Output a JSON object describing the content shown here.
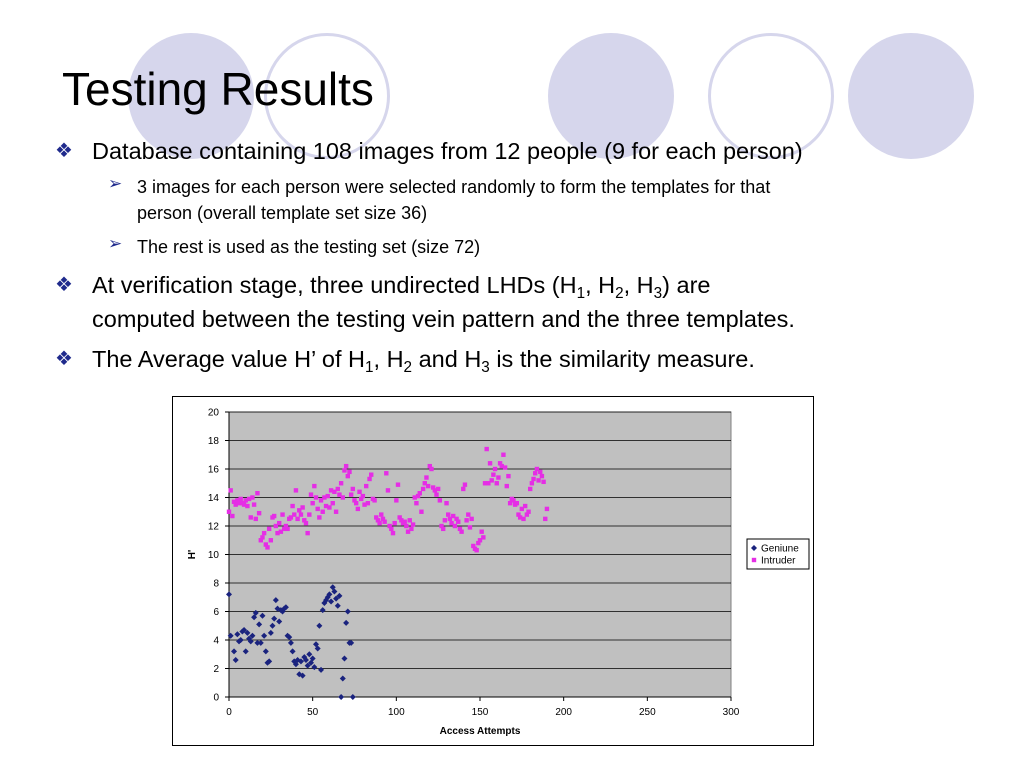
{
  "slide": {
    "title": "Testing Results",
    "bullets": [
      {
        "level": 1,
        "text": "Database containing 108 images from 12 people (9 for each person)"
      },
      {
        "level": 2,
        "text": "3 images for each person were selected randomly to form the templates for that"
      },
      {
        "level": 2,
        "text": "person (overall template set size 36)"
      },
      {
        "level": 2,
        "text": "The rest is used as the testing set (size 72)"
      },
      {
        "level": 1,
        "text": "At verification stage, three undirected LHDs (H",
        "sub1": "1",
        "mid1": ", H",
        "sub2": "2",
        "mid2": ", H",
        "sub3": "3",
        "tail": ") are"
      },
      {
        "level": 1,
        "text": "computed between the testing vein pattern and the three templates."
      },
      {
        "level": 1,
        "text": "The Average value H’ of H",
        "sub1": "1",
        "mid1": ", H",
        "sub2": "2",
        "mid2": " and H",
        "sub3": "3",
        "tail": " is the similarity measure."
      }
    ],
    "colors": {
      "accent": "#1f2a8c",
      "decor": "#d6d6ec"
    }
  },
  "chart_data": {
    "type": "scatter",
    "xlabel": "Access Attempts",
    "ylabel": "H'",
    "xlim": [
      0,
      300
    ],
    "ylim": [
      0,
      20
    ],
    "xticks": [
      0,
      50,
      100,
      150,
      200,
      250,
      300
    ],
    "yticks": [
      0,
      2,
      4,
      6,
      8,
      10,
      12,
      14,
      16,
      18,
      20
    ],
    "grid": true,
    "plot_background": "#c0c0c0",
    "legend_position": "right",
    "series": [
      {
        "name": "Geniune",
        "color": "#1a237e",
        "marker": "diamond",
        "points": [
          [
            0,
            7.2
          ],
          [
            1,
            4.3
          ],
          [
            3,
            3.2
          ],
          [
            4,
            2.6
          ],
          [
            5,
            4.4
          ],
          [
            6,
            3.9
          ],
          [
            7,
            4.0
          ],
          [
            8,
            4.6
          ],
          [
            9,
            4.7
          ],
          [
            10,
            3.2
          ],
          [
            11,
            4.5
          ],
          [
            12,
            4.1
          ],
          [
            13,
            3.9
          ],
          [
            14,
            4.3
          ],
          [
            15,
            5.6
          ],
          [
            16,
            5.9
          ],
          [
            17,
            3.8
          ],
          [
            18,
            5.1
          ],
          [
            19,
            3.8
          ],
          [
            20,
            5.7
          ],
          [
            21,
            4.3
          ],
          [
            22,
            3.2
          ],
          [
            23,
            2.4
          ],
          [
            24,
            2.5
          ],
          [
            25,
            4.5
          ],
          [
            26,
            5.0
          ],
          [
            27,
            5.5
          ],
          [
            28,
            6.8
          ],
          [
            29,
            6.2
          ],
          [
            30,
            5.3
          ],
          [
            31,
            6.1
          ],
          [
            32,
            6.0
          ],
          [
            33,
            6.2
          ],
          [
            34,
            6.3
          ],
          [
            35,
            4.3
          ],
          [
            36,
            4.2
          ],
          [
            37,
            3.8
          ],
          [
            38,
            3.2
          ],
          [
            39,
            2.5
          ],
          [
            40,
            2.3
          ],
          [
            41,
            2.6
          ],
          [
            42,
            1.6
          ],
          [
            43,
            2.5
          ],
          [
            44,
            1.5
          ],
          [
            45,
            2.8
          ],
          [
            46,
            2.6
          ],
          [
            47,
            2.2
          ],
          [
            48,
            3.0
          ],
          [
            49,
            2.4
          ],
          [
            50,
            2.7
          ],
          [
            51,
            2.1
          ],
          [
            52,
            3.7
          ],
          [
            53,
            3.4
          ],
          [
            54,
            5.0
          ],
          [
            55,
            1.9
          ],
          [
            56,
            6.1
          ],
          [
            57,
            6.6
          ],
          [
            58,
            6.8
          ],
          [
            59,
            7.0
          ],
          [
            60,
            7.2
          ],
          [
            61,
            6.7
          ],
          [
            62,
            7.7
          ],
          [
            63,
            7.4
          ],
          [
            64,
            6.9
          ],
          [
            65,
            6.4
          ],
          [
            66,
            7.1
          ],
          [
            67,
            0.0
          ],
          [
            68,
            1.3
          ],
          [
            69,
            2.7
          ],
          [
            70,
            5.2
          ],
          [
            71,
            6.0
          ],
          [
            72,
            3.8
          ],
          [
            73,
            3.8
          ],
          [
            74,
            0.0
          ]
        ]
      },
      {
        "name": "Intruder",
        "color": "#e52ee5",
        "marker": "square",
        "points": [
          [
            0,
            13.0
          ],
          [
            1,
            14.5
          ],
          [
            2,
            12.7
          ],
          [
            3,
            13.7
          ],
          [
            4,
            13.5
          ],
          [
            5,
            13.8
          ],
          [
            6,
            13.6
          ],
          [
            7,
            13.9
          ],
          [
            8,
            13.6
          ],
          [
            9,
            13.5
          ],
          [
            10,
            13.8
          ],
          [
            11,
            13.4
          ],
          [
            12,
            13.9
          ],
          [
            13,
            12.6
          ],
          [
            14,
            14.0
          ],
          [
            15,
            13.5
          ],
          [
            16,
            12.5
          ],
          [
            17,
            14.3
          ],
          [
            18,
            12.9
          ],
          [
            19,
            11.0
          ],
          [
            20,
            11.2
          ],
          [
            21,
            11.5
          ],
          [
            22,
            10.7
          ],
          [
            23,
            10.5
          ],
          [
            24,
            11.8
          ],
          [
            25,
            11.0
          ],
          [
            26,
            12.6
          ],
          [
            27,
            12.7
          ],
          [
            28,
            12.0
          ],
          [
            29,
            11.5
          ],
          [
            30,
            12.2
          ],
          [
            31,
            11.6
          ],
          [
            32,
            12.8
          ],
          [
            33,
            11.8
          ],
          [
            34,
            12.0
          ],
          [
            35,
            11.8
          ],
          [
            36,
            12.5
          ],
          [
            37,
            12.6
          ],
          [
            38,
            13.4
          ],
          [
            39,
            12.8
          ],
          [
            40,
            14.5
          ],
          [
            41,
            12.5
          ],
          [
            42,
            13.1
          ],
          [
            43,
            12.8
          ],
          [
            44,
            13.3
          ],
          [
            45,
            12.4
          ],
          [
            46,
            12.2
          ],
          [
            47,
            11.5
          ],
          [
            48,
            12.8
          ],
          [
            49,
            14.2
          ],
          [
            50,
            13.6
          ],
          [
            51,
            14.8
          ],
          [
            52,
            14.0
          ],
          [
            53,
            13.2
          ],
          [
            54,
            12.6
          ],
          [
            55,
            13.8
          ],
          [
            56,
            13.0
          ],
          [
            57,
            14.0
          ],
          [
            58,
            13.4
          ],
          [
            59,
            14.1
          ],
          [
            60,
            13.3
          ],
          [
            61,
            14.5
          ],
          [
            62,
            13.6
          ],
          [
            63,
            14.4
          ],
          [
            64,
            13.0
          ],
          [
            65,
            14.6
          ],
          [
            66,
            14.2
          ],
          [
            67,
            15.0
          ],
          [
            68,
            14.0
          ],
          [
            69,
            15.9
          ],
          [
            70,
            16.2
          ],
          [
            71,
            15.5
          ],
          [
            72,
            15.8
          ],
          [
            73,
            14.2
          ],
          [
            74,
            14.6
          ],
          [
            75,
            13.8
          ],
          [
            76,
            13.6
          ],
          [
            77,
            13.2
          ],
          [
            78,
            14.4
          ],
          [
            79,
            13.9
          ],
          [
            80,
            14.1
          ],
          [
            81,
            13.5
          ],
          [
            82,
            14.8
          ],
          [
            83,
            13.6
          ],
          [
            84,
            15.3
          ],
          [
            85,
            15.6
          ],
          [
            86,
            13.9
          ],
          [
            87,
            13.8
          ],
          [
            88,
            12.6
          ],
          [
            89,
            12.4
          ],
          [
            90,
            12.2
          ],
          [
            91,
            12.8
          ],
          [
            92,
            12.5
          ],
          [
            93,
            12.3
          ],
          [
            94,
            15.7
          ],
          [
            95,
            14.5
          ],
          [
            96,
            12.0
          ],
          [
            97,
            11.8
          ],
          [
            98,
            11.5
          ],
          [
            99,
            12.2
          ],
          [
            100,
            13.8
          ],
          [
            101,
            14.9
          ],
          [
            102,
            12.6
          ],
          [
            103,
            12.4
          ],
          [
            104,
            12.2
          ],
          [
            105,
            12.3
          ],
          [
            106,
            12.0
          ],
          [
            107,
            11.6
          ],
          [
            108,
            12.4
          ],
          [
            109,
            11.8
          ],
          [
            110,
            12.1
          ],
          [
            111,
            14.0
          ],
          [
            112,
            13.6
          ],
          [
            113,
            14.1
          ],
          [
            114,
            14.3
          ],
          [
            115,
            13.0
          ],
          [
            116,
            14.6
          ],
          [
            117,
            15.0
          ],
          [
            118,
            15.4
          ],
          [
            119,
            14.8
          ],
          [
            120,
            16.2
          ],
          [
            121,
            16.0
          ],
          [
            122,
            14.7
          ],
          [
            123,
            14.5
          ],
          [
            124,
            14.2
          ],
          [
            125,
            14.6
          ],
          [
            126,
            13.8
          ],
          [
            127,
            12.0
          ],
          [
            128,
            11.8
          ],
          [
            129,
            12.4
          ],
          [
            130,
            13.6
          ],
          [
            131,
            12.8
          ],
          [
            132,
            12.5
          ],
          [
            133,
            12.2
          ],
          [
            134,
            12.7
          ],
          [
            135,
            12.0
          ],
          [
            136,
            12.5
          ],
          [
            137,
            12.3
          ],
          [
            138,
            11.8
          ],
          [
            139,
            11.6
          ],
          [
            140,
            14.6
          ],
          [
            141,
            14.9
          ],
          [
            142,
            12.4
          ],
          [
            143,
            12.8
          ],
          [
            144,
            11.9
          ],
          [
            145,
            12.5
          ],
          [
            146,
            10.6
          ],
          [
            147,
            10.4
          ],
          [
            148,
            10.3
          ],
          [
            149,
            10.8
          ],
          [
            150,
            11.0
          ],
          [
            151,
            11.6
          ],
          [
            152,
            11.2
          ],
          [
            153,
            15.0
          ],
          [
            154,
            17.4
          ],
          [
            155,
            15.0
          ],
          [
            156,
            16.4
          ],
          [
            157,
            15.2
          ],
          [
            158,
            15.6
          ],
          [
            159,
            16.0
          ],
          [
            160,
            15.0
          ],
          [
            161,
            15.4
          ],
          [
            162,
            16.4
          ],
          [
            163,
            16.2
          ],
          [
            164,
            17.0
          ],
          [
            165,
            16.1
          ],
          [
            166,
            14.8
          ],
          [
            167,
            15.5
          ],
          [
            168,
            13.6
          ],
          [
            169,
            13.9
          ],
          [
            170,
            13.8
          ],
          [
            171,
            13.5
          ],
          [
            172,
            13.6
          ],
          [
            173,
            12.8
          ],
          [
            174,
            12.6
          ],
          [
            175,
            13.2
          ],
          [
            176,
            12.5
          ],
          [
            177,
            13.4
          ],
          [
            178,
            12.8
          ],
          [
            179,
            13.0
          ],
          [
            180,
            14.6
          ],
          [
            181,
            15.0
          ],
          [
            182,
            15.3
          ],
          [
            183,
            15.7
          ],
          [
            184,
            16.0
          ],
          [
            185,
            15.2
          ],
          [
            186,
            15.8
          ],
          [
            187,
            15.5
          ],
          [
            188,
            15.1
          ],
          [
            189,
            12.5
          ],
          [
            190,
            13.2
          ]
        ]
      }
    ]
  }
}
